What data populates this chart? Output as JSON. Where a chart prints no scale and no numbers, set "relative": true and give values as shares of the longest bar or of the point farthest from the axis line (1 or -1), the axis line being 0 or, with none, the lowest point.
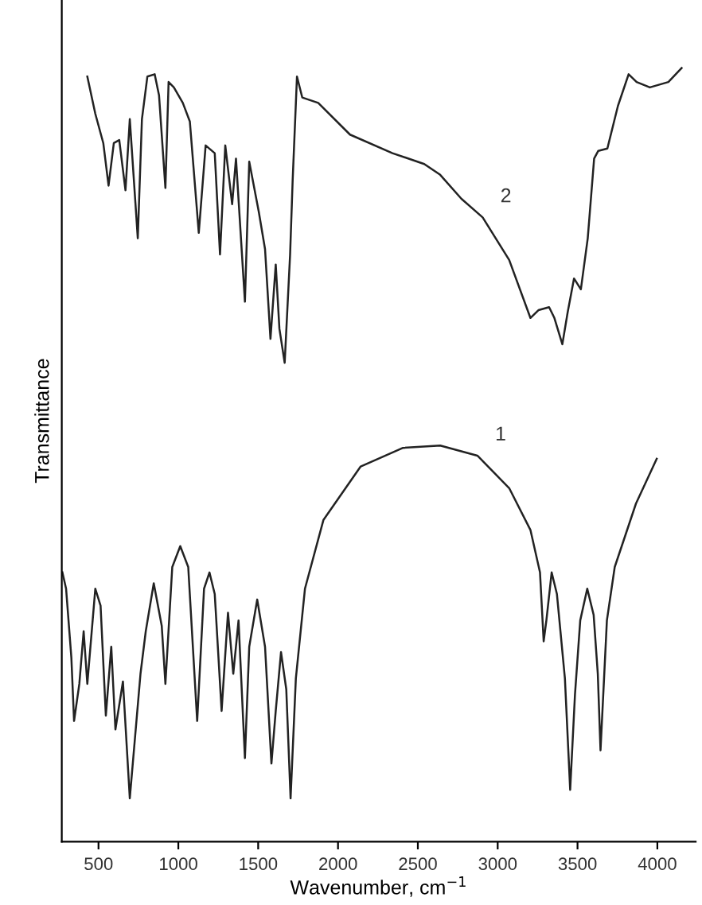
{
  "chart_data": {
    "type": "line",
    "relative": true,
    "xlabel": "Wavenumber, cm$^{−1}$",
    "ylabel": "Transmittance",
    "xlim": [
      270,
      4240
    ],
    "xticks": [
      500,
      1000,
      1500,
      2000,
      2500,
      3000,
      3500,
      4000
    ],
    "grid": false,
    "marker": "none",
    "line_style": "solid",
    "series": [
      {
        "color": "#222222",
        "x": [
          274,
          297,
          330,
          347,
          380,
          407,
          430,
          480,
          513,
          546,
          580,
          606,
          653,
          696,
          763,
          796,
          846,
          896,
          919,
          962,
          1012,
          1062,
          1118,
          1161,
          1195,
          1228,
          1271,
          1311,
          1344,
          1377,
          1417,
          1444,
          1494,
          1543,
          1583,
          1610,
          1643,
          1676,
          1703,
          1736,
          1793,
          1909,
          2142,
          2407,
          2640,
          2873,
          3072,
          3205,
          3265,
          3288,
          3305,
          3338,
          3371,
          3421,
          3454,
          3484,
          3517,
          3561,
          3601,
          3627,
          3644,
          3684,
          3733,
          3866,
          3996
        ],
        "values": [
          0.348,
          0.327,
          0.238,
          0.156,
          0.204,
          0.272,
          0.204,
          0.327,
          0.305,
          0.163,
          0.252,
          0.145,
          0.207,
          0.056,
          0.217,
          0.272,
          0.334,
          0.279,
          0.204,
          0.355,
          0.382,
          0.355,
          0.156,
          0.327,
          0.348,
          0.32,
          0.169,
          0.296,
          0.217,
          0.286,
          0.108,
          0.252,
          0.313,
          0.252,
          0.101,
          0.169,
          0.245,
          0.197,
          0.056,
          0.211,
          0.327,
          0.416,
          0.485,
          0.509,
          0.512,
          0.499,
          0.457,
          0.403,
          0.348,
          0.259,
          0.286,
          0.348,
          0.32,
          0.211,
          0.067,
          0.19,
          0.286,
          0.327,
          0.293,
          0.217,
          0.118,
          0.286,
          0.355,
          0.437,
          0.495
        ]
      },
      {
        "color": "#222222",
        "x": [
          430,
          480,
          530,
          563,
          596,
          630,
          669,
          696,
          746,
          772,
          806,
          852,
          879,
          919,
          939,
          972,
          1028,
          1072,
          1128,
          1171,
          1228,
          1261,
          1294,
          1337,
          1361,
          1417,
          1444,
          1504,
          1543,
          1577,
          1610,
          1633,
          1666,
          1700,
          1716,
          1743,
          1776,
          1876,
          2075,
          2341,
          2540,
          2640,
          2773,
          2906,
          3072,
          3205,
          3255,
          3322,
          3355,
          3405,
          3438,
          3478,
          3521,
          3564,
          3604,
          3630,
          3687,
          3753,
          3820,
          3870,
          3953,
          4069,
          4152
        ],
        "values": [
          0.989,
          0.941,
          0.903,
          0.848,
          0.903,
          0.907,
          0.842,
          0.934,
          0.78,
          0.934,
          0.989,
          0.992,
          0.965,
          0.845,
          0.982,
          0.975,
          0.955,
          0.931,
          0.787,
          0.9,
          0.89,
          0.759,
          0.9,
          0.824,
          0.883,
          0.698,
          0.879,
          0.814,
          0.766,
          0.65,
          0.746,
          0.663,
          0.619,
          0.759,
          0.855,
          0.989,
          0.962,
          0.955,
          0.914,
          0.89,
          0.876,
          0.862,
          0.831,
          0.807,
          0.752,
          0.677,
          0.687,
          0.691,
          0.677,
          0.643,
          0.684,
          0.728,
          0.714,
          0.78,
          0.883,
          0.893,
          0.896,
          0.951,
          0.992,
          0.982,
          0.975,
          0.982,
          1.0
        ]
      }
    ],
    "annotations": [
      {
        "text": "1",
        "x": 2873,
        "y": 0.499
      },
      {
        "text": "2",
        "x": 2906,
        "y": 0.807
      }
    ]
  }
}
